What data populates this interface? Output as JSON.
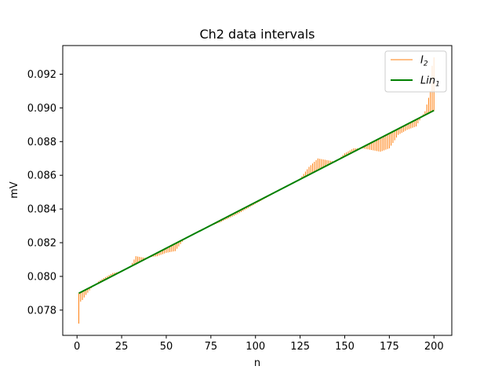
{
  "chart_data": {
    "type": "line",
    "title": "Ch2 data intervals",
    "xlabel": "n",
    "ylabel": "mV",
    "xlim": [
      -8,
      210
    ],
    "ylim": [
      0.0765,
      0.0937
    ],
    "xticks": [
      0,
      25,
      50,
      75,
      100,
      125,
      150,
      175,
      200
    ],
    "xtick_labels": [
      "0",
      "25",
      "50",
      "75",
      "100",
      "125",
      "150",
      "175",
      "200"
    ],
    "yticks": [
      0.078,
      0.08,
      0.082,
      0.084,
      0.086,
      0.088,
      0.09,
      0.092
    ],
    "ytick_labels": [
      "0.078",
      "0.080",
      "0.082",
      "0.084",
      "0.086",
      "0.088",
      "0.090",
      "0.092"
    ],
    "grid": false,
    "legend_position": "top-right",
    "series": [
      {
        "name": "I2",
        "legend_label": "I",
        "legend_sub": "2",
        "kind": "intervals",
        "color": "#ff7f0e",
        "description_points": [
          [
            1,
            0.0772
          ],
          [
            2,
            0.0785
          ],
          [
            3,
            0.0786
          ],
          [
            5,
            0.0789
          ],
          [
            8,
            0.0793
          ],
          [
            12,
            0.0797
          ],
          [
            15,
            0.0799
          ],
          [
            20,
            0.0802
          ],
          [
            25,
            0.0803
          ],
          [
            30,
            0.0806
          ],
          [
            33,
            0.0812
          ],
          [
            38,
            0.0811
          ],
          [
            45,
            0.0812
          ],
          [
            50,
            0.0814
          ],
          [
            55,
            0.0815
          ],
          [
            60,
            0.0822
          ],
          [
            70,
            0.0828
          ],
          [
            80,
            0.0832
          ],
          [
            90,
            0.0837
          ],
          [
            100,
            0.0843
          ],
          [
            110,
            0.0849
          ],
          [
            120,
            0.0855
          ],
          [
            125,
            0.0858
          ],
          [
            130,
            0.0865
          ],
          [
            135,
            0.087
          ],
          [
            140,
            0.0869
          ],
          [
            145,
            0.0868
          ],
          [
            150,
            0.0873
          ],
          [
            155,
            0.0876
          ],
          [
            160,
            0.0876
          ],
          [
            165,
            0.0875
          ],
          [
            170,
            0.0874
          ],
          [
            175,
            0.0876
          ],
          [
            180,
            0.0884
          ],
          [
            185,
            0.0887
          ],
          [
            190,
            0.0889
          ],
          [
            195,
            0.0898
          ],
          [
            198,
            0.091
          ],
          [
            199,
            0.0925
          ],
          [
            200,
            0.093
          ]
        ]
      },
      {
        "name": "Lin1",
        "legend_label": "Lin",
        "legend_sub": "1",
        "kind": "line",
        "color": "#008000",
        "x": [
          1,
          200
        ],
        "y": [
          0.079,
          0.08985
        ]
      }
    ]
  }
}
